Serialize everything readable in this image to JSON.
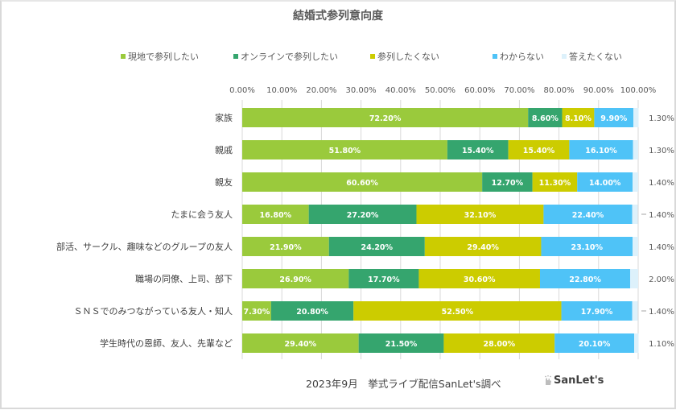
{
  "chart_data": {
    "type": "bar",
    "orientation": "horizontal",
    "stacked": "percent",
    "title": "結婚式参列意向度",
    "xlabel": "",
    "ylabel": "",
    "xlim": [
      0,
      100
    ],
    "x_ticks": [
      "0.00%",
      "10.00%",
      "20.00%",
      "30.00%",
      "40.00%",
      "50.00%",
      "60.00%",
      "70.00%",
      "80.00%",
      "90.00%",
      "100.00%"
    ],
    "grid": true,
    "legend_position": "top",
    "categories": [
      "家族",
      "親戚",
      "親友",
      "たまに会う友人",
      "部活、サークル、趣味などのグループの友人",
      "職場の同僚、上司、部下",
      "ＳＮＳでのみつながっている友人・知人",
      "学生時代の恩師、友人、先輩など"
    ],
    "series": [
      {
        "name": "現地で参列したい",
        "color": "#9ACA3C",
        "values": [
          72.2,
          51.8,
          60.6,
          16.8,
          21.9,
          26.9,
          7.3,
          29.4
        ],
        "labels": [
          "72.20%",
          "51.80%",
          "60.60%",
          "16.80%",
          "21.90%",
          "26.90%",
          "7.30%",
          "29.40%"
        ]
      },
      {
        "name": "オンラインで参列したい",
        "color": "#35A56E",
        "values": [
          8.6,
          15.4,
          12.7,
          27.2,
          24.2,
          17.7,
          20.8,
          21.5
        ],
        "labels": [
          "8.60%",
          "15.40%",
          "12.70%",
          "27.20%",
          "24.20%",
          "17.70%",
          "20.80%",
          "21.50%"
        ]
      },
      {
        "name": "参列したくない",
        "color": "#CCCC00",
        "values": [
          8.1,
          15.4,
          11.3,
          32.1,
          29.4,
          30.6,
          52.5,
          28.0
        ],
        "labels": [
          "8.10%",
          "15.40%",
          "11.30%",
          "32.10%",
          "29.40%",
          "30.60%",
          "52.50%",
          "28.00%"
        ]
      },
      {
        "name": "わからない",
        "color": "#4FC3F7",
        "values": [
          9.9,
          16.1,
          14.0,
          22.4,
          23.1,
          22.8,
          17.9,
          20.1
        ],
        "labels": [
          "9.90%",
          "16.10%",
          "14.00%",
          "22.40%",
          "23.10%",
          "22.80%",
          "17.90%",
          "20.10%"
        ]
      },
      {
        "name": "答えたくない",
        "color": "#DDF1FB",
        "values": [
          1.3,
          1.3,
          1.4,
          1.4,
          1.4,
          2.0,
          1.4,
          1.1
        ],
        "labels": [
          "1.30%",
          "1.30%",
          "1.40%",
          "1.40%",
          "1.40%",
          "2.00%",
          "1.40%",
          "1.10%"
        ]
      }
    ],
    "leader_lines_rows": [
      3,
      6
    ]
  },
  "footer": {
    "source": "2023年9月　挙式ライブ配信SanLet's調べ",
    "logo_text": "SanLet's"
  }
}
